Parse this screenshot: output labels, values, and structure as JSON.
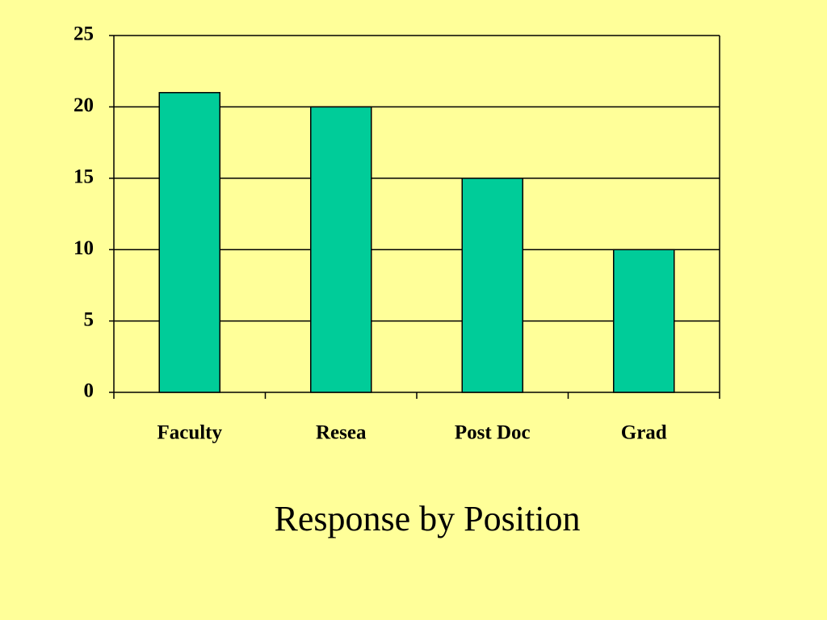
{
  "chart_data": {
    "type": "bar",
    "title": "Response by Position",
    "categories": [
      "Faculty",
      "Resea",
      "Post Doc",
      "Grad"
    ],
    "values": [
      21,
      20,
      15,
      10
    ],
    "color": "#00cc99",
    "ylim": [
      0,
      25
    ],
    "yticks": [
      0,
      5,
      10,
      15,
      20,
      25
    ],
    "grid": true
  }
}
